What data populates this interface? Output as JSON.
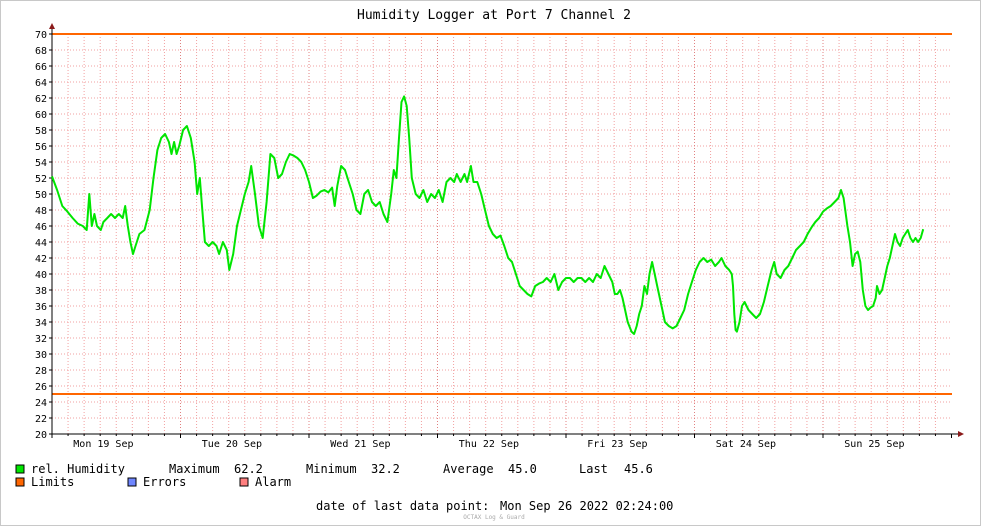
{
  "chart_data": {
    "type": "line",
    "title": "Humidity Logger at Port 7 Channel 2",
    "ylim": [
      20,
      70
    ],
    "y_ticks": [
      20,
      22,
      24,
      26,
      28,
      30,
      32,
      34,
      36,
      38,
      40,
      42,
      44,
      46,
      48,
      50,
      52,
      54,
      56,
      58,
      60,
      62,
      64,
      66,
      68,
      70
    ],
    "x_ticks": [
      "Mon 19 Sep",
      "Tue 20 Sep",
      "Wed 21 Sep",
      "Thu 22 Sep",
      "Fri 23 Sep",
      "Sat 24 Sep",
      "Sun 25 Sep"
    ],
    "xlim_days": [
      0,
      7
    ],
    "grid": true,
    "limits": {
      "upper": 70,
      "lower": 25
    },
    "series": [
      {
        "name": "rel. Humidity",
        "color": "#00e600",
        "points": [
          [
            0.0,
            52.2
          ],
          [
            0.04,
            50.5
          ],
          [
            0.08,
            48.5
          ],
          [
            0.12,
            47.8
          ],
          [
            0.16,
            47.0
          ],
          [
            0.2,
            46.3
          ],
          [
            0.24,
            46.0
          ],
          [
            0.27,
            45.5
          ],
          [
            0.29,
            50.0
          ],
          [
            0.31,
            46.0
          ],
          [
            0.33,
            47.5
          ],
          [
            0.35,
            46.0
          ],
          [
            0.38,
            45.5
          ],
          [
            0.4,
            46.5
          ],
          [
            0.43,
            47.0
          ],
          [
            0.46,
            47.5
          ],
          [
            0.49,
            47.0
          ],
          [
            0.52,
            47.5
          ],
          [
            0.55,
            47.0
          ],
          [
            0.57,
            48.5
          ],
          [
            0.59,
            46.0
          ],
          [
            0.61,
            44.0
          ],
          [
            0.63,
            42.5
          ],
          [
            0.65,
            43.5
          ],
          [
            0.68,
            45.0
          ],
          [
            0.72,
            45.5
          ],
          [
            0.76,
            48.0
          ],
          [
            0.79,
            52.0
          ],
          [
            0.82,
            55.5
          ],
          [
            0.85,
            57.0
          ],
          [
            0.88,
            57.5
          ],
          [
            0.91,
            56.5
          ],
          [
            0.93,
            55.0
          ],
          [
            0.95,
            56.5
          ],
          [
            0.97,
            55.0
          ],
          [
            0.99,
            56.0
          ],
          [
            1.02,
            58.0
          ],
          [
            1.05,
            58.5
          ],
          [
            1.08,
            57.0
          ],
          [
            1.11,
            54.0
          ],
          [
            1.13,
            50.0
          ],
          [
            1.15,
            52.0
          ],
          [
            1.17,
            48.0
          ],
          [
            1.19,
            44.0
          ],
          [
            1.22,
            43.5
          ],
          [
            1.25,
            44.0
          ],
          [
            1.28,
            43.5
          ],
          [
            1.3,
            42.5
          ],
          [
            1.33,
            44.0
          ],
          [
            1.36,
            43.0
          ],
          [
            1.38,
            40.5
          ],
          [
            1.41,
            42.5
          ],
          [
            1.44,
            46.0
          ],
          [
            1.47,
            48.0
          ],
          [
            1.5,
            50.0
          ],
          [
            1.53,
            51.5
          ],
          [
            1.55,
            53.5
          ],
          [
            1.58,
            50.0
          ],
          [
            1.61,
            46.0
          ],
          [
            1.64,
            44.5
          ],
          [
            1.67,
            49.0
          ],
          [
            1.7,
            55.0
          ],
          [
            1.73,
            54.5
          ],
          [
            1.76,
            52.0
          ],
          [
            1.79,
            52.5
          ],
          [
            1.82,
            54.0
          ],
          [
            1.85,
            55.0
          ],
          [
            1.88,
            54.8
          ],
          [
            1.91,
            54.5
          ],
          [
            1.94,
            54.0
          ],
          [
            1.97,
            53.0
          ],
          [
            2.0,
            51.5
          ],
          [
            2.03,
            49.5
          ],
          [
            2.06,
            49.8
          ],
          [
            2.09,
            50.3
          ],
          [
            2.12,
            50.5
          ],
          [
            2.15,
            50.2
          ],
          [
            2.18,
            50.8
          ],
          [
            2.2,
            48.5
          ],
          [
            2.22,
            51.0
          ],
          [
            2.25,
            53.5
          ],
          [
            2.28,
            53.0
          ],
          [
            2.31,
            51.5
          ],
          [
            2.34,
            50.0
          ],
          [
            2.37,
            48.0
          ],
          [
            2.4,
            47.5
          ],
          [
            2.43,
            50.0
          ],
          [
            2.46,
            50.5
          ],
          [
            2.49,
            49.0
          ],
          [
            2.52,
            48.5
          ],
          [
            2.55,
            49.0
          ],
          [
            2.58,
            47.5
          ],
          [
            2.61,
            46.5
          ],
          [
            2.64,
            50.0
          ],
          [
            2.66,
            53.0
          ],
          [
            2.68,
            52.0
          ],
          [
            2.7,
            57.0
          ],
          [
            2.72,
            61.5
          ],
          [
            2.74,
            62.2
          ],
          [
            2.76,
            61.0
          ],
          [
            2.78,
            57.0
          ],
          [
            2.8,
            52.0
          ],
          [
            2.83,
            50.0
          ],
          [
            2.86,
            49.5
          ],
          [
            2.89,
            50.5
          ],
          [
            2.92,
            49.0
          ],
          [
            2.95,
            50.0
          ],
          [
            2.98,
            49.5
          ],
          [
            3.01,
            50.5
          ],
          [
            3.04,
            49.0
          ],
          [
            3.07,
            51.5
          ],
          [
            3.1,
            52.0
          ],
          [
            3.13,
            51.5
          ],
          [
            3.15,
            52.5
          ],
          [
            3.18,
            51.5
          ],
          [
            3.21,
            52.5
          ],
          [
            3.23,
            51.5
          ],
          [
            3.26,
            53.5
          ],
          [
            3.28,
            51.5
          ],
          [
            3.31,
            51.5
          ],
          [
            3.34,
            50.0
          ],
          [
            3.37,
            48.0
          ],
          [
            3.4,
            46.0
          ],
          [
            3.43,
            45.0
          ],
          [
            3.46,
            44.5
          ],
          [
            3.49,
            44.8
          ],
          [
            3.52,
            43.5
          ],
          [
            3.55,
            42.0
          ],
          [
            3.58,
            41.5
          ],
          [
            3.61,
            40.0
          ],
          [
            3.64,
            38.5
          ],
          [
            3.67,
            38.0
          ],
          [
            3.7,
            37.5
          ],
          [
            3.73,
            37.2
          ],
          [
            3.76,
            38.5
          ],
          [
            3.79,
            38.8
          ],
          [
            3.82,
            39.0
          ],
          [
            3.85,
            39.5
          ],
          [
            3.88,
            39.0
          ],
          [
            3.91,
            40.0
          ],
          [
            3.94,
            38.0
          ],
          [
            3.97,
            39.0
          ],
          [
            4.0,
            39.5
          ],
          [
            4.03,
            39.5
          ],
          [
            4.06,
            39.0
          ],
          [
            4.09,
            39.5
          ],
          [
            4.12,
            39.5
          ],
          [
            4.15,
            39.0
          ],
          [
            4.18,
            39.5
          ],
          [
            4.21,
            39.0
          ],
          [
            4.24,
            40.0
          ],
          [
            4.27,
            39.5
          ],
          [
            4.3,
            41.0
          ],
          [
            4.33,
            40.0
          ],
          [
            4.36,
            39.0
          ],
          [
            4.38,
            37.5
          ],
          [
            4.4,
            37.5
          ],
          [
            4.42,
            38.0
          ],
          [
            4.44,
            37.0
          ],
          [
            4.46,
            35.5
          ],
          [
            4.48,
            34.0
          ],
          [
            4.51,
            32.8
          ],
          [
            4.53,
            32.5
          ],
          [
            4.55,
            33.5
          ],
          [
            4.57,
            35.0
          ],
          [
            4.59,
            36.0
          ],
          [
            4.61,
            38.5
          ],
          [
            4.63,
            37.5
          ],
          [
            4.65,
            40.0
          ],
          [
            4.67,
            41.5
          ],
          [
            4.69,
            40.0
          ],
          [
            4.71,
            38.5
          ],
          [
            4.73,
            37.0
          ],
          [
            4.75,
            35.5
          ],
          [
            4.77,
            34.0
          ],
          [
            4.8,
            33.5
          ],
          [
            4.83,
            33.2
          ],
          [
            4.86,
            33.5
          ],
          [
            4.89,
            34.5
          ],
          [
            4.92,
            35.5
          ],
          [
            4.95,
            37.5
          ],
          [
            4.98,
            39.0
          ],
          [
            5.01,
            40.5
          ],
          [
            5.04,
            41.5
          ],
          [
            5.07,
            42.0
          ],
          [
            5.1,
            41.5
          ],
          [
            5.13,
            41.8
          ],
          [
            5.16,
            41.0
          ],
          [
            5.19,
            41.5
          ],
          [
            5.21,
            42.0
          ],
          [
            5.24,
            41.0
          ],
          [
            5.27,
            40.5
          ],
          [
            5.29,
            40.0
          ],
          [
            5.3,
            38.5
          ],
          [
            5.31,
            35.0
          ],
          [
            5.32,
            33.0
          ],
          [
            5.33,
            32.8
          ],
          [
            5.35,
            34.0
          ],
          [
            5.37,
            36.0
          ],
          [
            5.39,
            36.5
          ],
          [
            5.42,
            35.5
          ],
          [
            5.45,
            35.0
          ],
          [
            5.48,
            34.5
          ],
          [
            5.51,
            35.0
          ],
          [
            5.54,
            36.5
          ],
          [
            5.57,
            38.5
          ],
          [
            5.6,
            40.5
          ],
          [
            5.62,
            41.5
          ],
          [
            5.64,
            40.0
          ],
          [
            5.67,
            39.5
          ],
          [
            5.7,
            40.5
          ],
          [
            5.73,
            41.0
          ],
          [
            5.76,
            42.0
          ],
          [
            5.79,
            43.0
          ],
          [
            5.82,
            43.5
          ],
          [
            5.85,
            44.0
          ],
          [
            5.88,
            45.0
          ],
          [
            5.91,
            45.8
          ],
          [
            5.94,
            46.5
          ],
          [
            5.97,
            47.0
          ],
          [
            6.0,
            47.8
          ],
          [
            6.03,
            48.2
          ],
          [
            6.06,
            48.5
          ],
          [
            6.09,
            49.0
          ],
          [
            6.12,
            49.5
          ],
          [
            6.14,
            50.5
          ],
          [
            6.16,
            49.5
          ],
          [
            6.19,
            46.0
          ],
          [
            6.21,
            44.0
          ],
          [
            6.23,
            41.0
          ],
          [
            6.25,
            42.5
          ],
          [
            6.27,
            42.8
          ],
          [
            6.29,
            41.5
          ],
          [
            6.31,
            38.0
          ],
          [
            6.33,
            36.0
          ],
          [
            6.35,
            35.5
          ],
          [
            6.37,
            35.8
          ],
          [
            6.39,
            36.0
          ],
          [
            6.41,
            37.0
          ],
          [
            6.42,
            38.5
          ],
          [
            6.44,
            37.5
          ],
          [
            6.46,
            38.0
          ],
          [
            6.48,
            39.5
          ],
          [
            6.5,
            41.0
          ],
          [
            6.52,
            42.0
          ],
          [
            6.54,
            43.5
          ],
          [
            6.56,
            45.0
          ],
          [
            6.58,
            44.0
          ],
          [
            6.6,
            43.5
          ],
          [
            6.62,
            44.5
          ],
          [
            6.64,
            45.0
          ],
          [
            6.66,
            45.5
          ],
          [
            6.68,
            44.5
          ],
          [
            6.7,
            44.0
          ],
          [
            6.72,
            44.5
          ],
          [
            6.74,
            44.0
          ],
          [
            6.76,
            44.5
          ],
          [
            6.78,
            45.6
          ]
        ]
      }
    ]
  },
  "legend": {
    "series_label": "rel. Humidity",
    "maximum_label": "Maximum",
    "maximum_value": "62.2",
    "minimum_label": "Minimum",
    "minimum_value": "32.2",
    "average_label": "Average",
    "average_value": "45.0",
    "last_label": "Last",
    "last_value": "45.6",
    "limits_label": "Limits",
    "errors_label": "Errors",
    "alarm_label": "Alarm",
    "humidity_color": "#00e600",
    "limits_color": "#ff6600",
    "errors_color": "#6f86ff",
    "alarm_color": "#ff7f7f"
  },
  "footer": {
    "last_point_label": "date of last data point:",
    "last_point_value": "Mon Sep 26 2022 02:24:00",
    "watermark": "OCTAX Log & Guard"
  }
}
